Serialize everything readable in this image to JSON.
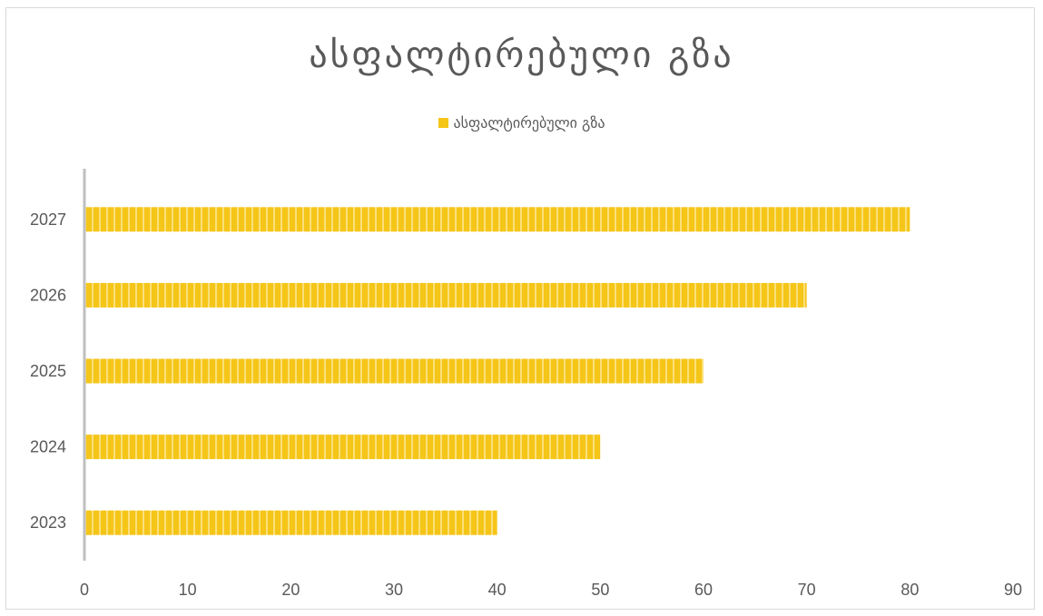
{
  "colors": {
    "bar": "#F5C518",
    "bar_stripe": "#FBE07A",
    "axis": "#bfbfbf",
    "text": "#595959"
  },
  "chart_data": {
    "type": "bar",
    "orientation": "horizontal",
    "title": "ასფალტირებული გზა",
    "legend": {
      "position": "top",
      "entries": [
        "ასფალტირებული გზა"
      ]
    },
    "categories": [
      "2023",
      "2024",
      "2025",
      "2026",
      "2027"
    ],
    "series": [
      {
        "name": "ასფალტირებული გზა",
        "values": [
          40,
          50,
          60,
          70,
          80
        ]
      }
    ],
    "x_ticks": [
      "0",
      "10",
      "20",
      "30",
      "40",
      "50",
      "60",
      "70",
      "80",
      "90"
    ],
    "xlim": [
      0,
      90
    ],
    "grid": false,
    "bar_pattern": "vertical-stripes"
  }
}
